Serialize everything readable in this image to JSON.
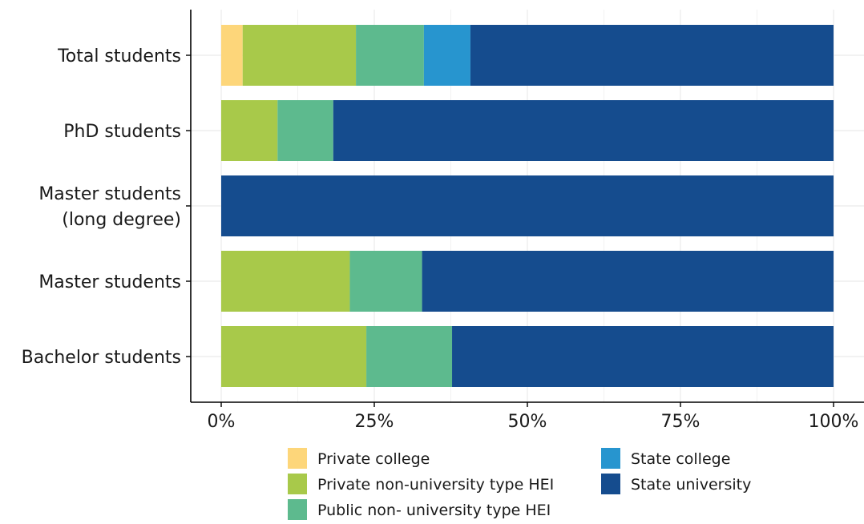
{
  "chart_data": {
    "type": "bar",
    "orientation": "horizontal",
    "stacked": true,
    "normalized": true,
    "categories": [
      [
        "Total students"
      ],
      [
        "PhD students"
      ],
      [
        "Master students",
        "(long degree)"
      ],
      [
        "Master students"
      ],
      [
        "Bachelor students"
      ]
    ],
    "series": [
      {
        "name": "Private college",
        "color": "#FDD67A",
        "values": [
          3.5,
          0,
          0,
          0,
          0
        ]
      },
      {
        "name": "Private non-university type HEI",
        "color": "#A8C94A",
        "values": [
          18.5,
          9.2,
          0,
          21.0,
          23.7
        ]
      },
      {
        "name": "Public non- university type HEI",
        "color": "#5DBA8E",
        "values": [
          11.1,
          9.1,
          0,
          11.8,
          14.0
        ]
      },
      {
        "name": "State college",
        "color": "#2795CF",
        "values": [
          7.6,
          0,
          0,
          0,
          0
        ]
      },
      {
        "name": "State university",
        "color": "#154C8E",
        "values": [
          59.3,
          81.7,
          100,
          67.2,
          62.3
        ]
      }
    ],
    "x_ticks": [
      "0%",
      "25%",
      "50%",
      "75%",
      "100%"
    ],
    "xlim": [
      0,
      100
    ],
    "grid": true,
    "legend_position": "bottom"
  }
}
